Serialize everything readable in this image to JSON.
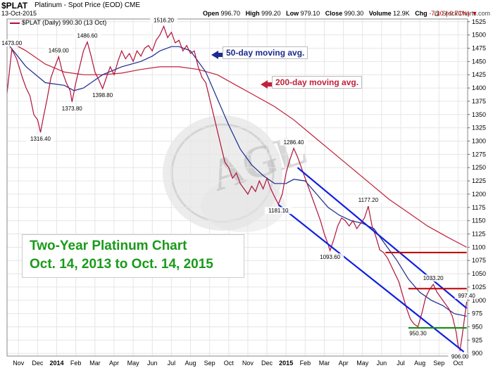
{
  "header": {
    "symbol": "$PLAT",
    "description": "Platinum  - Spot Price (EOD)  CME",
    "date": "13-Oct-2015",
    "watermark": "@ StockCharts.com",
    "open_label": "Open",
    "open": "996.70",
    "high_label": "High",
    "high": "999.20",
    "low_label": "Low",
    "low": "979.10",
    "close_label": "Close",
    "close": "990.30",
    "volume_label": "Volume",
    "volume": "12.9K",
    "chg_label": "Chg",
    "chg": "-7.10 (-0.71%)",
    "legend": "$PLAT (Daily) 990.30 (13 Oct)"
  },
  "annotations": {
    "ma50": "50-day moving avg.",
    "ma200": "200-day moving avg.",
    "title_line1": "Two-Year Platinum Chart",
    "title_line2": "Oct. 14, 2013 to Oct. 14, 2015"
  },
  "colors": {
    "price": "#b0123a",
    "ma50": "#1b2a8c",
    "ma200": "#c0203a",
    "channel": "#1020e0",
    "resistance": "#c00000",
    "support": "#109010",
    "title_text": "#1a9a1a",
    "grid": "#e6e6e6"
  },
  "chart_data": {
    "type": "line",
    "title": "",
    "xlabel": "",
    "ylabel": "",
    "ylim": [
      895,
      1530
    ],
    "y_ticks": [
      900,
      925,
      950,
      975,
      1000,
      1025,
      1050,
      1075,
      1100,
      1125,
      1150,
      1175,
      1200,
      1225,
      1250,
      1275,
      1300,
      1325,
      1350,
      1375,
      1400,
      1425,
      1450,
      1475,
      1500,
      1525
    ],
    "x_ticks": [
      {
        "label": "Nov",
        "t": 0.6
      },
      {
        "label": "Dec",
        "t": 1.6
      },
      {
        "label": "2014",
        "t": 2.6
      },
      {
        "label": "Feb",
        "t": 3.6
      },
      {
        "label": "Mar",
        "t": 4.6
      },
      {
        "label": "Apr",
        "t": 5.6
      },
      {
        "label": "May",
        "t": 6.6
      },
      {
        "label": "Jun",
        "t": 7.6
      },
      {
        "label": "Jul",
        "t": 8.6
      },
      {
        "label": "Aug",
        "t": 9.6
      },
      {
        "label": "Sep",
        "t": 10.6
      },
      {
        "label": "Oct",
        "t": 11.6
      },
      {
        "label": "Nov",
        "t": 12.6
      },
      {
        "label": "Dec",
        "t": 13.6
      },
      {
        "label": "2015",
        "t": 14.6
      },
      {
        "label": "Feb",
        "t": 15.6
      },
      {
        "label": "Mar",
        "t": 16.6
      },
      {
        "label": "Apr",
        "t": 17.6
      },
      {
        "label": "May",
        "t": 18.6
      },
      {
        "label": "Jun",
        "t": 19.6
      },
      {
        "label": "Jul",
        "t": 20.6
      },
      {
        "label": "Aug",
        "t": 21.6
      },
      {
        "label": "Sep",
        "t": 22.6
      },
      {
        "label": "Oct",
        "t": 23.6
      }
    ],
    "tmax": 24.1,
    "grid": true,
    "series": [
      {
        "key": "price",
        "points": [
          [
            0,
            1390
          ],
          [
            0.25,
            1473
          ],
          [
            0.5,
            1455
          ],
          [
            0.8,
            1420
          ],
          [
            1.0,
            1400
          ],
          [
            1.2,
            1385
          ],
          [
            1.4,
            1350
          ],
          [
            1.6,
            1340
          ],
          [
            1.75,
            1316.4
          ],
          [
            1.9,
            1345
          ],
          [
            2.1,
            1380
          ],
          [
            2.3,
            1420
          ],
          [
            2.5,
            1440
          ],
          [
            2.7,
            1459
          ],
          [
            2.9,
            1430
          ],
          [
            3.1,
            1410
          ],
          [
            3.3,
            1395
          ],
          [
            3.4,
            1373.8
          ],
          [
            3.6,
            1410
          ],
          [
            3.8,
            1440
          ],
          [
            4.0,
            1470
          ],
          [
            4.2,
            1486.6
          ],
          [
            4.4,
            1460
          ],
          [
            4.6,
            1430
          ],
          [
            4.8,
            1415
          ],
          [
            5.0,
            1398.8
          ],
          [
            5.2,
            1420
          ],
          [
            5.4,
            1440
          ],
          [
            5.6,
            1425
          ],
          [
            5.8,
            1450
          ],
          [
            6.0,
            1470
          ],
          [
            6.2,
            1455
          ],
          [
            6.4,
            1465
          ],
          [
            6.6,
            1450
          ],
          [
            6.8,
            1470
          ],
          [
            7.0,
            1460
          ],
          [
            7.2,
            1475
          ],
          [
            7.4,
            1480
          ],
          [
            7.6,
            1470
          ],
          [
            7.8,
            1490
          ],
          [
            8.0,
            1500
          ],
          [
            8.2,
            1516.2
          ],
          [
            8.4,
            1495
          ],
          [
            8.6,
            1505
          ],
          [
            8.8,
            1485
          ],
          [
            9.0,
            1490
          ],
          [
            9.2,
            1470
          ],
          [
            9.4,
            1480
          ],
          [
            9.6,
            1465
          ],
          [
            9.8,
            1470
          ],
          [
            10.0,
            1440
          ],
          [
            10.2,
            1420
          ],
          [
            10.4,
            1410
          ],
          [
            10.6,
            1380
          ],
          [
            10.8,
            1350
          ],
          [
            11.0,
            1320
          ],
          [
            11.2,
            1290
          ],
          [
            11.4,
            1260
          ],
          [
            11.6,
            1250
          ],
          [
            11.8,
            1230
          ],
          [
            12.0,
            1240
          ],
          [
            12.2,
            1220
          ],
          [
            12.4,
            1210
          ],
          [
            12.6,
            1200
          ],
          [
            12.8,
            1215
          ],
          [
            13.0,
            1205
          ],
          [
            13.2,
            1225
          ],
          [
            13.4,
            1210
          ],
          [
            13.6,
            1230
          ],
          [
            13.8,
            1210
          ],
          [
            14.0,
            1195
          ],
          [
            14.2,
            1181.1
          ],
          [
            14.4,
            1200
          ],
          [
            14.6,
            1240
          ],
          [
            14.8,
            1265
          ],
          [
            15.0,
            1286.4
          ],
          [
            15.2,
            1270
          ],
          [
            15.4,
            1250
          ],
          [
            15.6,
            1230
          ],
          [
            15.8,
            1210
          ],
          [
            16.0,
            1190
          ],
          [
            16.2,
            1170
          ],
          [
            16.4,
            1150
          ],
          [
            16.6,
            1125
          ],
          [
            16.8,
            1105
          ],
          [
            16.9,
            1093.6
          ],
          [
            17.1,
            1115
          ],
          [
            17.3,
            1140
          ],
          [
            17.5,
            1155
          ],
          [
            17.7,
            1150
          ],
          [
            17.9,
            1140
          ],
          [
            18.1,
            1150
          ],
          [
            18.3,
            1135
          ],
          [
            18.5,
            1145
          ],
          [
            18.7,
            1155
          ],
          [
            18.9,
            1177.2
          ],
          [
            19.1,
            1140
          ],
          [
            19.3,
            1120
          ],
          [
            19.5,
            1095
          ],
          [
            19.7,
            1090
          ],
          [
            19.9,
            1080
          ],
          [
            20.1,
            1065
          ],
          [
            20.3,
            1050
          ],
          [
            20.5,
            1035
          ],
          [
            20.7,
            1010
          ],
          [
            20.9,
            985
          ],
          [
            21.1,
            965
          ],
          [
            21.3,
            955
          ],
          [
            21.5,
            950.3
          ],
          [
            21.7,
            975
          ],
          [
            21.9,
            1005
          ],
          [
            22.1,
            1020
          ],
          [
            22.3,
            1030
          ],
          [
            22.5,
            1015
          ],
          [
            22.7,
            1005
          ],
          [
            22.9,
            995
          ],
          [
            23.1,
            985
          ],
          [
            23.3,
            970
          ],
          [
            23.5,
            940
          ],
          [
            23.6,
            915
          ],
          [
            23.7,
            906
          ],
          [
            23.8,
            930
          ],
          [
            23.95,
            970
          ],
          [
            24.05,
            997.4
          ]
        ]
      },
      {
        "key": "ma50",
        "points": [
          [
            0,
            1485
          ],
          [
            1.0,
            1440
          ],
          [
            2.0,
            1410
          ],
          [
            3.0,
            1405
          ],
          [
            3.5,
            1395
          ],
          [
            4.0,
            1400
          ],
          [
            5.0,
            1425
          ],
          [
            6.0,
            1440
          ],
          [
            7.0,
            1450
          ],
          [
            7.6,
            1460
          ],
          [
            8.0,
            1470
          ],
          [
            8.6,
            1478
          ],
          [
            9.0,
            1478
          ],
          [
            9.6,
            1470
          ],
          [
            10.4,
            1430
          ],
          [
            11.0,
            1380
          ],
          [
            11.6,
            1330
          ],
          [
            12.2,
            1285
          ],
          [
            12.8,
            1255
          ],
          [
            13.4,
            1235
          ],
          [
            14.0,
            1220
          ],
          [
            14.6,
            1220
          ],
          [
            15.0,
            1228
          ],
          [
            15.6,
            1225
          ],
          [
            16.2,
            1200
          ],
          [
            16.8,
            1175
          ],
          [
            17.4,
            1160
          ],
          [
            18.0,
            1150
          ],
          [
            18.6,
            1145
          ],
          [
            19.2,
            1135
          ],
          [
            19.8,
            1105
          ],
          [
            20.4,
            1075
          ],
          [
            21.0,
            1040
          ],
          [
            21.6,
            1015
          ],
          [
            22.2,
            1000
          ],
          [
            22.8,
            990
          ],
          [
            23.4,
            975
          ],
          [
            24.05,
            970
          ]
        ]
      },
      {
        "key": "ma200",
        "points": [
          [
            0,
            1490
          ],
          [
            1.0,
            1470
          ],
          [
            2.0,
            1445
          ],
          [
            3.0,
            1430
          ],
          [
            4.0,
            1425
          ],
          [
            5.0,
            1425
          ],
          [
            6.0,
            1428
          ],
          [
            7.0,
            1435
          ],
          [
            8.0,
            1440
          ],
          [
            9.0,
            1440
          ],
          [
            10.0,
            1435
          ],
          [
            11.0,
            1425
          ],
          [
            12.0,
            1405
          ],
          [
            13.0,
            1385
          ],
          [
            14.0,
            1365
          ],
          [
            15.0,
            1340
          ],
          [
            16.0,
            1310
          ],
          [
            17.0,
            1280
          ],
          [
            18.0,
            1250
          ],
          [
            19.0,
            1220
          ],
          [
            20.0,
            1190
          ],
          [
            21.0,
            1165
          ],
          [
            22.0,
            1140
          ],
          [
            23.0,
            1120
          ],
          [
            24.05,
            1100
          ]
        ]
      }
    ],
    "channel_lines": [
      {
        "from": [
          15.2,
          1250
        ],
        "to": [
          24.05,
          985
        ]
      },
      {
        "from": [
          14.2,
          1180
        ],
        "to": [
          23.9,
          903
        ]
      }
    ],
    "resistance_lines": [
      {
        "value": 1090,
        "from": 19.8,
        "to": 24.05
      },
      {
        "value": 1022,
        "from": 21.0,
        "to": 24.05
      }
    ],
    "support_lines": [
      {
        "value": 948,
        "from": 21.0,
        "to": 24.05
      }
    ],
    "data_labels": [
      {
        "text": "1473.00",
        "t": 0.25,
        "v": 1473,
        "pos": "above"
      },
      {
        "text": "1316.40",
        "t": 1.75,
        "v": 1316.4,
        "pos": "below"
      },
      {
        "text": "1459.00",
        "t": 2.7,
        "v": 1459,
        "pos": "above"
      },
      {
        "text": "1373.80",
        "t": 3.4,
        "v": 1373.8,
        "pos": "below"
      },
      {
        "text": "1486.60",
        "t": 4.2,
        "v": 1486.6,
        "pos": "above"
      },
      {
        "text": "1398.80",
        "t": 5.0,
        "v": 1398.8,
        "pos": "below"
      },
      {
        "text": "1516.20",
        "t": 8.2,
        "v": 1516.2,
        "pos": "above"
      },
      {
        "text": "1286.40",
        "t": 15.0,
        "v": 1286.4,
        "pos": "above"
      },
      {
        "text": "1181.10",
        "t": 14.2,
        "v": 1181.1,
        "pos": "below"
      },
      {
        "text": "1093.60",
        "t": 16.9,
        "v": 1093.6,
        "pos": "below"
      },
      {
        "text": "1177.20",
        "t": 18.9,
        "v": 1177.2,
        "pos": "above"
      },
      {
        "text": "1033.20",
        "t": 22.3,
        "v": 1030,
        "pos": "above"
      },
      {
        "text": "997.40",
        "t": 24.05,
        "v": 997.4,
        "pos": "above"
      },
      {
        "text": "950.30",
        "t": 21.5,
        "v": 950.3,
        "pos": "below"
      },
      {
        "text": "906.00",
        "t": 23.7,
        "v": 906,
        "pos": "below"
      }
    ]
  }
}
